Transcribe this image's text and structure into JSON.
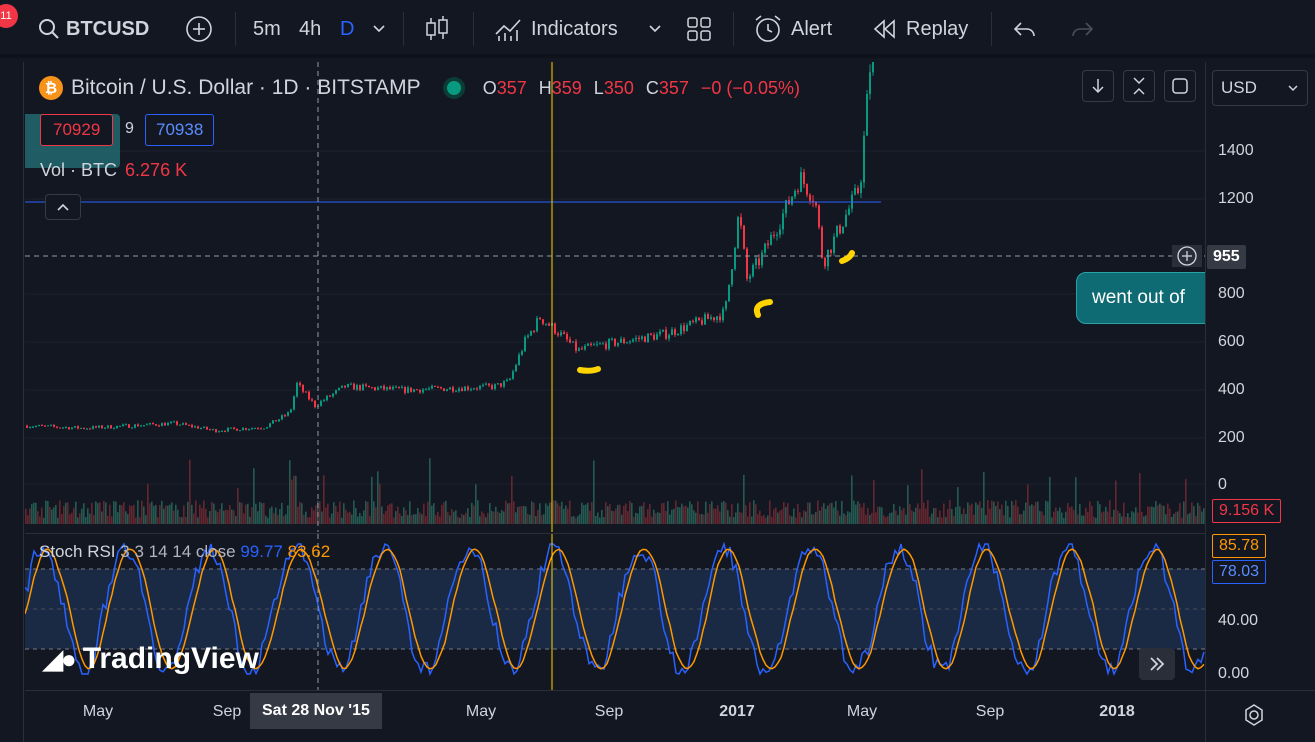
{
  "toolbar": {
    "notification_count": "11",
    "symbol": "BTCUSD",
    "intervals": [
      "5m",
      "4h",
      "D"
    ],
    "active_interval": "D",
    "indicators_label": "Indicators",
    "alert_label": "Alert",
    "replay_label": "Replay"
  },
  "legend": {
    "logo_letter": "₿",
    "title": "Bitcoin / U.S. Dollar · 1D · BITSTAMP",
    "open_key": "O",
    "open": "357",
    "high_key": "H",
    "high": "359",
    "low_key": "L",
    "low": "350",
    "close_key": "C",
    "close": "357",
    "change": "−0 (−0.05%)",
    "bid": "70929",
    "spread": "9",
    "ask": "70938",
    "volume_label": "Vol · BTC",
    "volume_value": "6.276 K"
  },
  "callout": {
    "text": "went out of"
  },
  "price_axis": {
    "currency": "USD",
    "ticks": [
      "1400",
      "1200",
      "955",
      "800",
      "600",
      "400",
      "200",
      "0"
    ],
    "crosshair_price": "955",
    "volume_label": "9.156 K",
    "rsi_k_label": "85.78",
    "rsi_d_label": "78.03",
    "rsi_ticks": [
      "40.00",
      "0.00"
    ]
  },
  "rsi": {
    "name": "Stoch RSI",
    "params": "3 3 14 14 close",
    "k_value": "99.77",
    "d_value": "83.62"
  },
  "branding": {
    "logo_text": "TradingView"
  },
  "time_axis": {
    "ticks": [
      "May",
      "Sep",
      "May",
      "Sep",
      "2017",
      "May",
      "Sep",
      "2018"
    ],
    "crosshair_date": "Sat 28 Nov '15"
  },
  "colors": {
    "background": "#131722",
    "up": "#089981",
    "down": "#f23645",
    "stoch_k": "#2962ff",
    "stoch_d": "#ff9800",
    "annotation": "#ffd400",
    "callout": "#0e6b73"
  }
}
